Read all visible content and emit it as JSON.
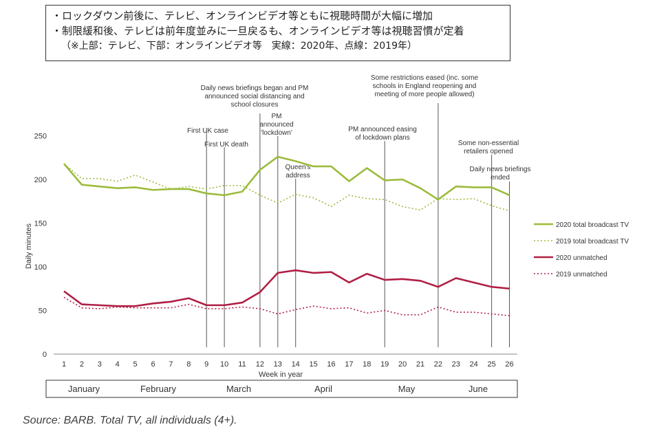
{
  "notes": {
    "line1": "・ロックダウン前後に、テレビ、オンラインビデオ等ともに視聴時間が大幅に増加",
    "line2": "・制限緩和後、テレビは前年度並みに一旦戻るも、オンラインビデオ等は視聴習慣が定着",
    "line3": "（※上部：テレビ、下部：オンラインビデオ等　実線：2020年、点線：2019年）"
  },
  "source": "Source: BARB. Total TV, all individuals (4+).",
  "chart_data": {
    "type": "line",
    "xlabel": "Week in year",
    "ylabel": "Daily minutes",
    "x": [
      1,
      2,
      3,
      4,
      5,
      6,
      7,
      8,
      9,
      10,
      11,
      12,
      13,
      14,
      15,
      16,
      17,
      18,
      19,
      20,
      21,
      22,
      23,
      24,
      25,
      26
    ],
    "ylim": [
      0,
      250
    ],
    "yticks": [
      0,
      50,
      100,
      150,
      200,
      250
    ],
    "grid": false,
    "legend_position": "right",
    "series": [
      {
        "name": "2020 total broadcast TV",
        "color": "#9bbb3b",
        "style": "solid",
        "values": [
          218,
          194,
          192,
          190,
          191,
          188,
          189,
          189,
          184,
          182,
          186,
          211,
          226,
          221,
          215,
          215,
          198,
          213,
          199,
          200,
          190,
          177,
          192,
          191,
          191,
          182
        ]
      },
      {
        "name": "2019 total broadcast TV",
        "color": "#9bbb3b",
        "style": "dotted",
        "values": [
          218,
          201,
          201,
          198,
          205,
          197,
          189,
          192,
          189,
          193,
          193,
          182,
          173,
          183,
          179,
          169,
          182,
          178,
          177,
          169,
          165,
          178,
          177,
          178,
          170,
          164
        ]
      },
      {
        "name": "2020 unmatched",
        "color": "#b01e43",
        "style": "solid",
        "values": [
          72,
          57,
          56,
          55,
          55,
          58,
          60,
          64,
          56,
          56,
          59,
          71,
          93,
          96,
          93,
          94,
          82,
          92,
          85,
          86,
          84,
          77,
          87,
          82,
          77,
          75
        ]
      },
      {
        "name": "2019 unmatched",
        "color": "#b01e43",
        "style": "dotted",
        "values": [
          65,
          53,
          52,
          54,
          53,
          53,
          53,
          57,
          52,
          52,
          54,
          52,
          46,
          51,
          55,
          52,
          53,
          47,
          50,
          45,
          45,
          54,
          48,
          48,
          46,
          44
        ]
      }
    ],
    "annotations": [
      {
        "week": 9,
        "lines": [
          "First UK case"
        ]
      },
      {
        "week": 10,
        "lines": [
          "First UK death"
        ]
      },
      {
        "week": 12,
        "lines": [
          "Daily news briefings began and PM",
          "announced social distancing and",
          "school closures"
        ]
      },
      {
        "week": 13,
        "lines": [
          "PM",
          "announced",
          "'lockdown'"
        ]
      },
      {
        "week": 14,
        "lines": [
          "Queen's",
          "address"
        ]
      },
      {
        "week": 19,
        "lines": [
          "PM announced easing",
          "of lockdown plans"
        ]
      },
      {
        "week": 22,
        "lines": [
          "Some restrictions eased (inc. some",
          "schools in England reopening and",
          "meeting of more people allowed)"
        ]
      },
      {
        "week": 25,
        "lines": [
          "Some non-essential",
          "retailers opened"
        ]
      },
      {
        "week": 26,
        "lines": [
          "Daily news briefings",
          "ended"
        ]
      }
    ],
    "months": [
      {
        "label": "January",
        "from": 1,
        "to": 4
      },
      {
        "label": "February",
        "from": 5,
        "to": 8
      },
      {
        "label": "March",
        "from": 9,
        "to": 12
      },
      {
        "label": "April",
        "from": 13,
        "to": 17
      },
      {
        "label": "May",
        "from": 18,
        "to": 22
      },
      {
        "label": "June",
        "from": 23,
        "to": 26
      }
    ]
  }
}
